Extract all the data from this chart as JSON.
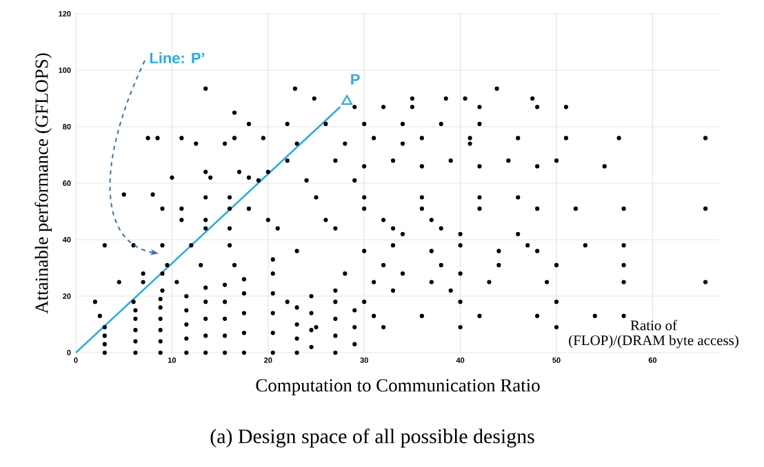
{
  "chart_data": {
    "type": "scatter",
    "title": "(a) Design space of all possible designs",
    "xlabel": "Computation to Communication Ratio",
    "ylabel": "Attainable performance (GFLOPS)",
    "xlim": [
      0,
      67
    ],
    "ylim": [
      0,
      120
    ],
    "xticks": [
      0,
      10,
      20,
      30,
      40,
      50,
      60
    ],
    "yticks": [
      0,
      20,
      40,
      60,
      80,
      100,
      120
    ],
    "grid": true,
    "marker": "circle",
    "annotations": [
      "Line: P’",
      {
        "text": "P",
        "x": 28.2,
        "y": 89
      },
      "Ratio of",
      "(FLOP)/(DRAM byte access)"
    ],
    "series": [
      {
        "type": "scatter",
        "color": "#000000",
        "x": [
          13.5,
          22.8,
          43.8,
          24.8,
          35,
          38.5,
          40.5,
          47.5,
          29,
          32,
          35,
          42,
          48,
          51,
          16.5,
          18,
          22,
          26,
          30,
          34,
          38,
          42,
          7.5,
          8.5,
          11,
          16.5,
          19.5,
          31,
          36,
          41,
          46,
          51,
          56.5,
          65.5,
          12.5,
          15.5,
          23,
          28,
          34,
          41,
          22,
          27,
          33,
          39,
          45,
          50,
          30,
          36,
          42,
          48,
          55,
          13.5,
          17,
          20,
          10,
          14,
          18,
          19,
          24,
          29,
          5,
          8,
          13.5,
          16,
          25,
          30,
          36,
          42,
          46,
          9,
          11,
          16,
          18,
          30,
          36,
          42,
          48,
          52,
          57,
          65.5,
          11,
          13.5,
          20,
          26,
          32,
          37,
          13.5,
          16,
          21,
          27,
          33,
          38,
          34,
          40,
          46,
          3,
          6,
          9,
          12,
          16,
          33,
          40,
          47,
          53,
          57,
          23,
          30,
          37,
          44,
          48,
          9.5,
          13,
          16.5,
          32,
          38,
          44,
          50,
          57,
          7,
          9,
          28,
          34,
          40,
          4.5,
          7,
          10.5,
          31,
          37,
          43,
          49,
          57,
          65.5,
          9,
          27,
          33,
          39,
          2,
          6,
          22,
          30,
          40,
          50,
          2.5,
          31,
          36,
          42,
          48,
          54,
          57,
          25,
          32,
          40,
          50,
          3,
          3,
          3,
          3,
          6.2,
          6.2,
          6.2,
          6.2,
          6.2,
          8.8,
          8.8,
          8.8,
          8.8,
          8.8,
          8.8,
          11.5,
          11.5,
          11.5,
          11.5,
          11.5,
          13.5,
          13.5,
          13.5,
          13.5,
          13.5,
          15.5,
          15.5,
          15.5,
          15.5,
          15.5,
          17.5,
          17.5,
          17.5,
          17.5,
          17.5,
          20.5,
          20.5,
          20.5,
          20.5,
          20.5,
          20.5,
          23,
          23,
          23,
          23,
          24.5,
          24.5,
          24.5,
          24.5,
          27,
          27,
          27,
          27,
          29,
          29,
          29
        ],
        "values": [
          93.5,
          93.5,
          93.5,
          90,
          90,
          90,
          90,
          90,
          87,
          87,
          87,
          87,
          87,
          87,
          85,
          81,
          81,
          81,
          81,
          81,
          81,
          81,
          76,
          76,
          76,
          76,
          76,
          76,
          76,
          76,
          76,
          76,
          76,
          76,
          74,
          74,
          74,
          74,
          74,
          74,
          68,
          68,
          68,
          68,
          68,
          68,
          66,
          66,
          66,
          66,
          66,
          64,
          64,
          64,
          62,
          62,
          62,
          61,
          61,
          61,
          56,
          56,
          55,
          55,
          55,
          55,
          55,
          55,
          55,
          51,
          51,
          51,
          51,
          51,
          51,
          51,
          51,
          51,
          51,
          51,
          47,
          47,
          47,
          47,
          47,
          47,
          44,
          44,
          44,
          44,
          44,
          44,
          42,
          42,
          42,
          38,
          38,
          38,
          38,
          38,
          38,
          38,
          38,
          38,
          38,
          36,
          36,
          36,
          36,
          36,
          31,
          31,
          31,
          31,
          31,
          31,
          31,
          31,
          28,
          28,
          28,
          28,
          28,
          25,
          25,
          25,
          25,
          25,
          25,
          25,
          25,
          25,
          22,
          22,
          22,
          22,
          18,
          18,
          18,
          18,
          18,
          18,
          13,
          13,
          13,
          13,
          13,
          13,
          13,
          9,
          9,
          9,
          9,
          0,
          3,
          6,
          9,
          0,
          4,
          8,
          12,
          15,
          0,
          4,
          8,
          12,
          16,
          19,
          0,
          5,
          10,
          15,
          20,
          0,
          6,
          12,
          18,
          23,
          0,
          6,
          12,
          18,
          24,
          0,
          7,
          14,
          21,
          26,
          0,
          7,
          14,
          21,
          28,
          33,
          0,
          5,
          10,
          16,
          2,
          8,
          14,
          20,
          0,
          6,
          12,
          18,
          3,
          9,
          15
        ]
      },
      {
        "type": "line",
        "color": "#29abe2",
        "marker": "none",
        "x": [
          0,
          27.5
        ],
        "values": [
          0,
          87
        ]
      },
      {
        "type": "scatter",
        "color": "#29abe2",
        "marker": "triangle",
        "x": [
          28.2
        ],
        "values": [
          89
        ]
      }
    ]
  }
}
